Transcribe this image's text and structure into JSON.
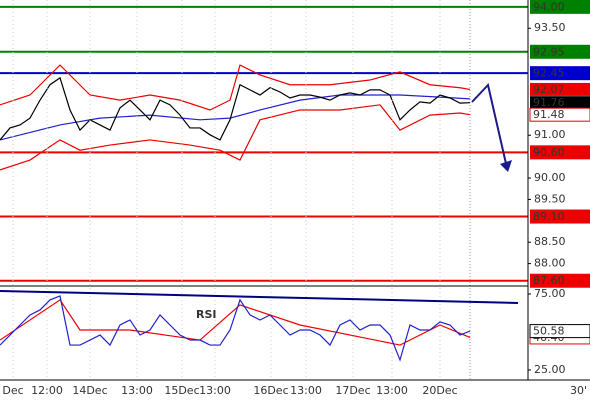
{
  "chart_data": [
    {
      "type": "line",
      "ylim": [
        87.5,
        94.16
      ],
      "xlim": [
        0,
        52.8
      ],
      "yticks": [
        {
          "value": 93.5,
          "label": "93.50"
        },
        {
          "value": 91,
          "label": "91.00"
        },
        {
          "value": 90,
          "label": "90.00"
        },
        {
          "value": 89.5,
          "label": "89.50"
        },
        {
          "value": 88.5,
          "label": "88.50"
        },
        {
          "value": 88,
          "label": "88.00"
        }
      ],
      "levels": [
        {
          "value": 94,
          "label": "94.00",
          "color": "#008000"
        },
        {
          "value": 92.95,
          "label": "92.95",
          "color": "#008000"
        },
        {
          "value": 92.45,
          "label": "92.45",
          "color": "#0000cc"
        },
        {
          "value": 90.6,
          "label": "90.60",
          "color": "#ee0000"
        },
        {
          "value": 89.1,
          "label": "89.10",
          "color": "#ee0000"
        },
        {
          "value": 87.6,
          "label": "87.60",
          "color": "#ee0000"
        }
      ],
      "markers": [
        {
          "value": 92.07,
          "label": "92.07",
          "color": "#ee0000",
          "style": "box"
        },
        {
          "value": 91.76,
          "label": "91.76",
          "color": "#000000",
          "style": "box"
        },
        {
          "value": 91.48,
          "label": "91.48",
          "color": "#ee0000",
          "style": "text"
        }
      ],
      "series": [
        {
          "color": "#ee0000",
          "x": [
            0,
            3,
            6,
            9,
            12,
            15,
            18,
            21,
            23,
            24,
            26,
            29,
            33,
            37,
            40,
            43,
            46,
            47
          ],
          "values": [
            91.71,
            91.94,
            92.64,
            91.94,
            91.82,
            91.94,
            91.82,
            91.59,
            91.82,
            92.64,
            92.41,
            92.18,
            92.18,
            92.29,
            92.48,
            92.18,
            92.11,
            92.07
          ]
        },
        {
          "color": "#ee0000",
          "x": [
            0,
            3,
            6,
            8,
            11,
            15,
            19,
            22,
            24,
            26,
            30,
            34,
            38,
            40,
            43,
            46,
            47
          ],
          "values": [
            90.19,
            90.42,
            90.89,
            90.65,
            90.77,
            90.89,
            90.77,
            90.65,
            90.42,
            91.36,
            91.59,
            91.59,
            91.71,
            91.12,
            91.47,
            91.52,
            91.48
          ]
        },
        {
          "color": "#2222cc",
          "x": [
            0,
            6,
            10,
            15,
            20,
            23,
            26,
            30,
            34,
            40,
            44,
            47
          ],
          "values": [
            90.89,
            91.24,
            91.4,
            91.47,
            91.36,
            91.4,
            91.59,
            91.82,
            91.94,
            91.94,
            91.89,
            91.85
          ]
        },
        {
          "color": "#000000",
          "x": [
            0,
            1,
            2,
            3,
            4,
            5,
            6,
            7,
            8,
            9,
            10,
            11,
            12,
            13,
            14,
            15,
            16,
            17,
            18,
            19,
            20,
            21,
            22,
            23,
            24,
            25,
            26,
            27,
            28,
            29,
            30,
            31,
            32,
            33,
            34,
            35,
            36,
            37,
            38,
            39,
            40,
            41,
            42,
            43,
            44,
            45,
            46,
            47
          ],
          "values": [
            90.89,
            91.17,
            91.24,
            91.4,
            91.82,
            92.18,
            92.34,
            91.59,
            91.12,
            91.36,
            91.24,
            91.12,
            91.64,
            91.82,
            91.59,
            91.36,
            91.82,
            91.71,
            91.47,
            91.17,
            91.17,
            91.01,
            90.89,
            91.36,
            92.18,
            92.06,
            91.94,
            92.11,
            92.01,
            91.87,
            91.94,
            91.94,
            91.89,
            91.82,
            91.94,
            91.99,
            91.94,
            92.06,
            92.06,
            91.94,
            91.36,
            91.59,
            91.78,
            91.75,
            91.94,
            91.87,
            91.75,
            91.76
          ]
        }
      ]
    },
    {
      "type": "line",
      "label": "RSI",
      "ylim": [
        18.4,
        79.6
      ],
      "xlim": [
        0,
        52.8
      ],
      "yticks": [
        {
          "value": 75,
          "label": "75.00"
        },
        {
          "value": 25,
          "label": "25.00"
        }
      ],
      "trendline": {
        "x": [
          0,
          51.8
        ],
        "values": [
          77,
          69.1
        ],
        "color": "#000080"
      },
      "markers": [
        {
          "value": 46.4,
          "label": "46.40",
          "color": "#ee0000",
          "style": "text"
        },
        {
          "value": 50.58,
          "label": "50.58",
          "color": "#000000",
          "style": "text"
        }
      ],
      "series": [
        {
          "color": "#ee0000",
          "x": [
            0,
            6,
            8,
            13,
            20,
            24,
            30,
            40,
            44,
            47
          ],
          "values": [
            44.7,
            71.1,
            51.3,
            51.3,
            44.7,
            67.8,
            54.6,
            41.4,
            54.6,
            46.4
          ]
        },
        {
          "color": "#2222cc",
          "x": [
            0,
            1,
            2,
            3,
            4,
            5,
            6,
            7,
            8,
            9,
            10,
            11,
            12,
            13,
            14,
            15,
            16,
            17,
            18,
            19,
            20,
            21,
            22,
            23,
            24,
            25,
            26,
            27,
            28,
            29,
            30,
            31,
            32,
            33,
            34,
            35,
            36,
            37,
            38,
            39,
            40,
            41,
            42,
            43,
            44,
            45,
            46,
            47
          ],
          "values": [
            41.4,
            48.0,
            54.6,
            61.2,
            64.5,
            71.1,
            73.7,
            41.4,
            41.4,
            44.7,
            48.0,
            41.4,
            54.6,
            57.9,
            48.0,
            51.3,
            61.2,
            54.6,
            48.0,
            44.7,
            44.7,
            41.4,
            41.4,
            51.3,
            71.1,
            61.2,
            57.9,
            61.2,
            54.6,
            48.0,
            51.3,
            51.3,
            48.0,
            41.4,
            54.6,
            57.9,
            51.3,
            54.6,
            54.6,
            48.0,
            31.6,
            54.6,
            51.3,
            51.3,
            56.6,
            54.6,
            48.0,
            50.58
          ]
        }
      ],
      "xticks": [
        {
          "value": 1.3,
          "label": "Dec"
        },
        {
          "value": 4.7,
          "label": "12:00"
        },
        {
          "value": 9,
          "label": "14Dec"
        },
        {
          "value": 13.7,
          "label": "13:00"
        },
        {
          "value": 18.2,
          "label": "15Dec"
        },
        {
          "value": 21.5,
          "label": "13:00"
        },
        {
          "value": 27.1,
          "label": "16Dec"
        },
        {
          "value": 30.6,
          "label": "13:00"
        },
        {
          "value": 35.3,
          "label": "17Dec"
        },
        {
          "value": 39.2,
          "label": "13:00"
        },
        {
          "value": 44,
          "label": "20Dec"
        }
      ],
      "timeframe": "30'"
    }
  ]
}
